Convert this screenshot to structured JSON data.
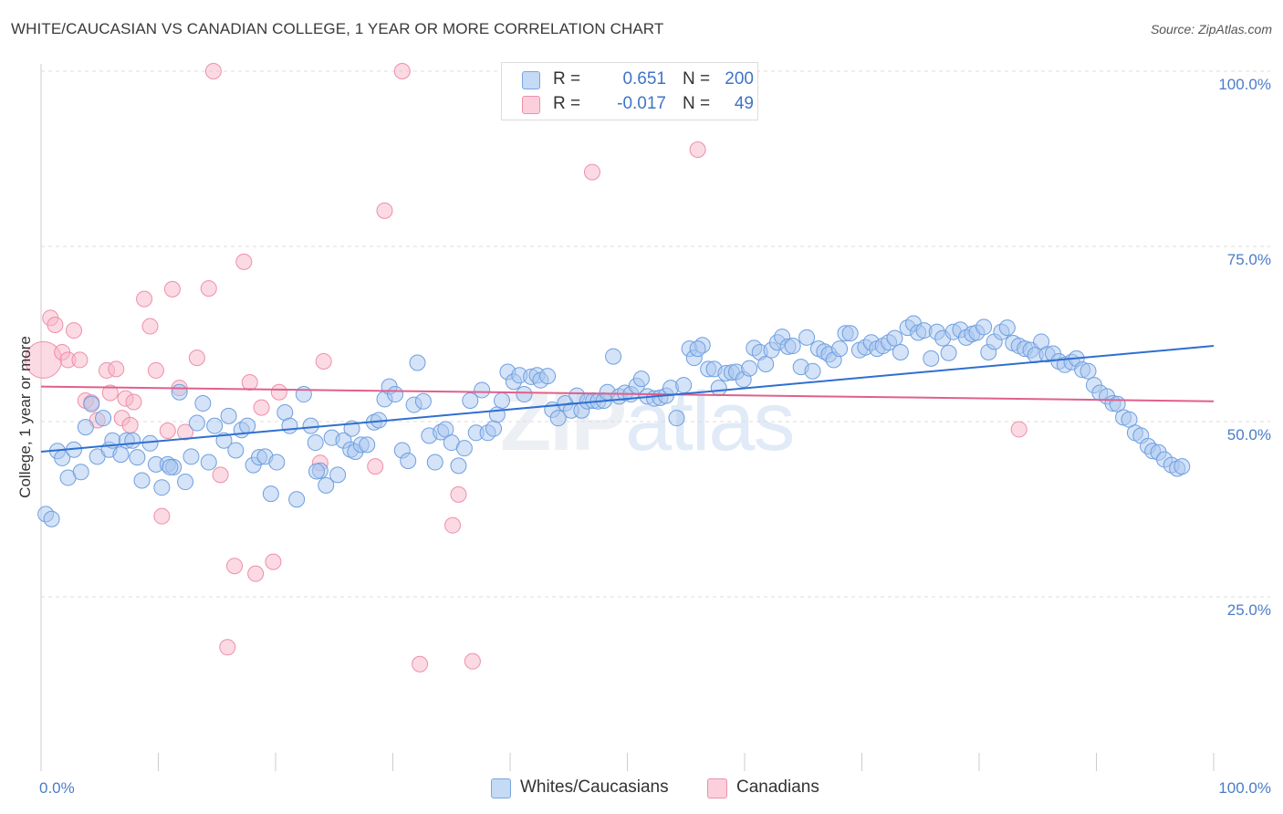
{
  "title": "WHITE/CAUCASIAN VS CANADIAN COLLEGE, 1 YEAR OR MORE CORRELATION CHART",
  "source": "Source: ZipAtlas.com",
  "watermark": {
    "zip": "ZIP",
    "atlas": "atlas"
  },
  "legend": {
    "rows": [
      {
        "r_label": "R =",
        "r_value": "0.651",
        "n_label": "N =",
        "n_value": "200",
        "color": "#aac8f0"
      },
      {
        "r_label": "R =",
        "r_value": "-0.017",
        "n_label": "N =",
        "n_value": "49",
        "color": "#f7b6c8"
      }
    ]
  },
  "bottom_legend": {
    "whites": "Whites/Caucasians",
    "canadians": "Canadians"
  },
  "colors": {
    "blue_fill": "#aac8f0",
    "blue_stroke": "#6f9fe0",
    "blue_line": "#2f6fd0",
    "pink_fill": "#f7b6c8",
    "pink_stroke": "#ee8fab",
    "pink_line": "#e0608c",
    "grid": "#dddddd",
    "tick_label": "#4a7cc9"
  },
  "chart_data": {
    "type": "scatter",
    "title": "WHITE/CAUCASIAN VS CANADIAN COLLEGE, 1 YEAR OR MORE CORRELATION CHART",
    "xlabel": "",
    "ylabel": "College, 1 year or more",
    "xlim": [
      0,
      100
    ],
    "ylim": [
      0,
      103
    ],
    "x_tick_labels": [
      "0.0%",
      "100.0%"
    ],
    "y_ticks": [
      25,
      50,
      75,
      100
    ],
    "y_tick_labels": [
      "25.0%",
      "50.0%",
      "75.0%",
      "100.0%"
    ],
    "grid": true,
    "series": [
      {
        "name": "Whites/Caucasians",
        "R": 0.651,
        "N": 200,
        "trend": {
          "x": [
            0,
            100
          ],
          "y": [
            45.7,
            60.8
          ]
        },
        "points": [
          [
            0.4,
            36.8
          ],
          [
            0.9,
            36.1
          ],
          [
            1.4,
            45.8
          ],
          [
            1.8,
            44.8
          ],
          [
            2.3,
            42.0
          ],
          [
            2.8,
            46.0
          ],
          [
            3.4,
            42.8
          ],
          [
            3.8,
            49.2
          ],
          [
            4.3,
            52.5
          ],
          [
            4.8,
            45.0
          ],
          [
            5.3,
            50.5
          ],
          [
            5.8,
            46.0
          ],
          [
            6.1,
            47.3
          ],
          [
            6.8,
            45.3
          ],
          [
            7.3,
            47.3
          ],
          [
            7.8,
            47.3
          ],
          [
            8.2,
            44.9
          ],
          [
            8.6,
            41.6
          ],
          [
            9.3,
            46.9
          ],
          [
            9.8,
            43.9
          ],
          [
            10.3,
            40.6
          ],
          [
            10.8,
            43.9
          ],
          [
            11.3,
            43.5
          ],
          [
            11.8,
            54.2
          ],
          [
            12.3,
            41.4
          ],
          [
            12.8,
            45.0
          ],
          [
            13.3,
            49.8
          ],
          [
            13.8,
            52.6
          ],
          [
            14.3,
            44.2
          ],
          [
            14.8,
            49.4
          ],
          [
            15.6,
            47.3
          ],
          [
            16.0,
            50.8
          ],
          [
            16.6,
            45.9
          ],
          [
            17.1,
            48.8
          ],
          [
            17.6,
            49.4
          ],
          [
            18.1,
            43.8
          ],
          [
            18.6,
            44.9
          ],
          [
            19.1,
            45.0
          ],
          [
            19.6,
            39.7
          ],
          [
            20.1,
            44.2
          ],
          [
            20.8,
            51.3
          ],
          [
            21.2,
            49.4
          ],
          [
            21.8,
            38.9
          ],
          [
            22.4,
            53.9
          ],
          [
            23.0,
            49.4
          ],
          [
            23.4,
            47.0
          ],
          [
            23.8,
            43.0
          ],
          [
            24.3,
            40.9
          ],
          [
            24.8,
            47.7
          ],
          [
            25.3,
            42.4
          ],
          [
            25.8,
            47.3
          ],
          [
            26.4,
            46.0
          ],
          [
            26.8,
            45.7
          ],
          [
            27.3,
            46.7
          ],
          [
            27.8,
            46.7
          ],
          [
            28.4,
            49.9
          ],
          [
            28.8,
            50.2
          ],
          [
            29.3,
            53.2
          ],
          [
            29.7,
            55.0
          ],
          [
            30.2,
            53.9
          ],
          [
            30.8,
            45.9
          ],
          [
            31.3,
            44.4
          ],
          [
            31.8,
            52.4
          ],
          [
            32.1,
            58.4
          ],
          [
            32.6,
            52.9
          ],
          [
            33.1,
            48.0
          ],
          [
            33.6,
            44.2
          ],
          [
            34.1,
            48.5
          ],
          [
            34.5,
            48.9
          ],
          [
            35.0,
            47.0
          ],
          [
            35.6,
            43.7
          ],
          [
            36.1,
            46.2
          ],
          [
            36.6,
            53.0
          ],
          [
            37.1,
            48.4
          ],
          [
            37.6,
            54.5
          ],
          [
            38.1,
            48.4
          ],
          [
            38.6,
            49.0
          ],
          [
            38.9,
            51.0
          ],
          [
            39.3,
            53.0
          ],
          [
            39.8,
            57.1
          ],
          [
            40.3,
            55.7
          ],
          [
            40.8,
            56.6
          ],
          [
            41.2,
            53.9
          ],
          [
            41.8,
            56.4
          ],
          [
            42.3,
            56.6
          ],
          [
            42.6,
            55.9
          ],
          [
            43.2,
            56.5
          ],
          [
            43.6,
            51.7
          ],
          [
            44.1,
            50.5
          ],
          [
            44.7,
            52.6
          ],
          [
            45.2,
            51.6
          ],
          [
            45.7,
            53.7
          ],
          [
            46.1,
            51.6
          ],
          [
            46.6,
            52.9
          ],
          [
            47.1,
            53.0
          ],
          [
            47.5,
            52.9
          ],
          [
            48.0,
            53.0
          ],
          [
            48.3,
            54.2
          ],
          [
            48.8,
            59.3
          ],
          [
            49.3,
            53.6
          ],
          [
            49.8,
            54.1
          ],
          [
            50.3,
            53.9
          ],
          [
            50.8,
            55.1
          ],
          [
            51.2,
            56.1
          ],
          [
            51.7,
            53.6
          ],
          [
            52.3,
            53.3
          ],
          [
            52.8,
            53.4
          ],
          [
            53.3,
            53.7
          ],
          [
            53.7,
            54.8
          ],
          [
            54.2,
            50.5
          ],
          [
            54.8,
            55.2
          ],
          [
            55.3,
            60.4
          ],
          [
            55.7,
            59.1
          ],
          [
            56.4,
            60.9
          ],
          [
            56.9,
            57.5
          ],
          [
            57.4,
            57.5
          ],
          [
            57.8,
            54.8
          ],
          [
            58.4,
            56.9
          ],
          [
            58.9,
            57.0
          ],
          [
            59.3,
            57.1
          ],
          [
            59.9,
            56.0
          ],
          [
            60.4,
            57.6
          ],
          [
            60.8,
            60.5
          ],
          [
            61.3,
            59.9
          ],
          [
            61.8,
            58.2
          ],
          [
            62.3,
            60.2
          ],
          [
            62.8,
            61.3
          ],
          [
            63.2,
            62.1
          ],
          [
            63.7,
            60.7
          ],
          [
            64.1,
            60.8
          ],
          [
            64.8,
            57.8
          ],
          [
            65.3,
            62.0
          ],
          [
            65.8,
            57.2
          ],
          [
            66.3,
            60.4
          ],
          [
            66.8,
            60.0
          ],
          [
            67.2,
            59.6
          ],
          [
            67.6,
            58.8
          ],
          [
            68.1,
            60.4
          ],
          [
            68.6,
            62.6
          ],
          [
            69.0,
            62.6
          ],
          [
            69.8,
            60.2
          ],
          [
            70.3,
            60.6
          ],
          [
            70.8,
            61.3
          ],
          [
            71.3,
            60.4
          ],
          [
            71.8,
            60.8
          ],
          [
            72.3,
            61.3
          ],
          [
            72.8,
            61.9
          ],
          [
            73.3,
            59.9
          ],
          [
            73.9,
            63.4
          ],
          [
            74.4,
            64.0
          ],
          [
            74.8,
            62.7
          ],
          [
            75.3,
            63.0
          ],
          [
            75.9,
            59.0
          ],
          [
            76.4,
            62.8
          ],
          [
            76.9,
            61.9
          ],
          [
            77.4,
            59.8
          ],
          [
            77.8,
            62.8
          ],
          [
            78.4,
            63.1
          ],
          [
            78.9,
            62.0
          ],
          [
            79.4,
            62.5
          ],
          [
            79.8,
            62.7
          ],
          [
            80.4,
            63.5
          ],
          [
            80.8,
            59.9
          ],
          [
            81.3,
            61.4
          ],
          [
            81.9,
            62.8
          ],
          [
            82.4,
            63.4
          ],
          [
            82.9,
            61.2
          ],
          [
            83.4,
            60.8
          ],
          [
            83.9,
            60.4
          ],
          [
            84.4,
            60.2
          ],
          [
            84.8,
            59.5
          ],
          [
            85.3,
            61.4
          ],
          [
            85.8,
            59.6
          ],
          [
            86.3,
            59.7
          ],
          [
            86.8,
            58.6
          ],
          [
            87.3,
            58.1
          ],
          [
            87.9,
            58.5
          ],
          [
            88.3,
            59.0
          ],
          [
            88.8,
            57.4
          ],
          [
            89.3,
            57.2
          ],
          [
            89.8,
            55.2
          ],
          [
            90.3,
            54.1
          ],
          [
            90.9,
            53.6
          ],
          [
            91.4,
            52.6
          ],
          [
            91.8,
            52.5
          ],
          [
            92.3,
            50.6
          ],
          [
            92.8,
            50.3
          ],
          [
            93.3,
            48.4
          ],
          [
            93.8,
            48.0
          ],
          [
            94.4,
            46.5
          ],
          [
            94.8,
            45.8
          ],
          [
            95.3,
            45.6
          ],
          [
            95.8,
            44.6
          ],
          [
            96.4,
            43.8
          ],
          [
            96.9,
            43.3
          ],
          [
            97.3,
            43.6
          ],
          [
            56.0,
            60.4
          ],
          [
            23.5,
            42.9
          ],
          [
            11.0,
            43.5
          ],
          [
            26.5,
            49.0
          ]
        ]
      },
      {
        "name": "Canadians",
        "R": -0.017,
        "N": 49,
        "trend": {
          "x": [
            0,
            100
          ],
          "y": [
            55.0,
            52.9
          ]
        },
        "points": [
          [
            0.2,
            58.8
          ],
          [
            0.8,
            64.8
          ],
          [
            1.2,
            63.8
          ],
          [
            1.8,
            59.9
          ],
          [
            2.3,
            58.8
          ],
          [
            2.8,
            63.0
          ],
          [
            3.3,
            58.8
          ],
          [
            3.8,
            53.0
          ],
          [
            4.3,
            52.7
          ],
          [
            4.8,
            50.2
          ],
          [
            5.6,
            57.3
          ],
          [
            5.9,
            54.1
          ],
          [
            6.4,
            57.5
          ],
          [
            6.9,
            50.5
          ],
          [
            7.2,
            53.3
          ],
          [
            7.6,
            49.5
          ],
          [
            7.9,
            52.8
          ],
          [
            8.8,
            67.5
          ],
          [
            9.3,
            63.6
          ],
          [
            9.8,
            57.3
          ],
          [
            10.3,
            36.5
          ],
          [
            10.8,
            48.7
          ],
          [
            11.2,
            68.9
          ],
          [
            11.8,
            54.8
          ],
          [
            12.3,
            48.5
          ],
          [
            13.3,
            59.1
          ],
          [
            14.3,
            69.0
          ],
          [
            14.7,
            100.0
          ],
          [
            15.3,
            42.4
          ],
          [
            15.9,
            17.8
          ],
          [
            16.5,
            29.4
          ],
          [
            17.3,
            72.8
          ],
          [
            17.8,
            55.6
          ],
          [
            18.3,
            28.3
          ],
          [
            18.8,
            52.0
          ],
          [
            19.8,
            30.0
          ],
          [
            20.3,
            54.2
          ],
          [
            23.8,
            44.1
          ],
          [
            24.1,
            58.6
          ],
          [
            28.5,
            43.6
          ],
          [
            29.3,
            80.1
          ],
          [
            30.8,
            100.0
          ],
          [
            32.3,
            15.4
          ],
          [
            35.1,
            35.2
          ],
          [
            35.6,
            39.6
          ],
          [
            36.8,
            15.8
          ],
          [
            47.0,
            85.6
          ],
          [
            56.0,
            88.8
          ],
          [
            83.4,
            48.9
          ]
        ]
      }
    ]
  }
}
